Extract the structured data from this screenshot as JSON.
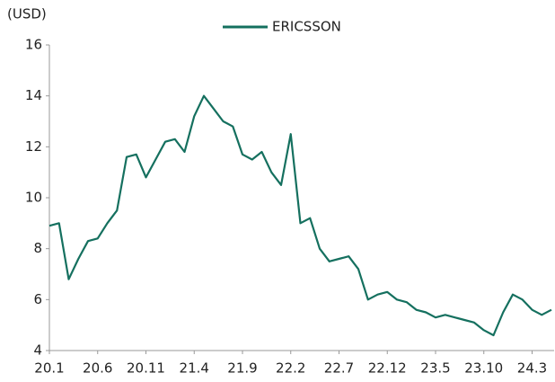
{
  "chart_data": {
    "type": "line",
    "y_label": "(USD)",
    "categories": [
      "20.1",
      "20.2",
      "20.3",
      "20.4",
      "20.5",
      "20.6",
      "20.7",
      "20.8",
      "20.9",
      "20.10",
      "20.11",
      "20.12",
      "21.1",
      "21.2",
      "21.3",
      "21.4",
      "21.5",
      "21.6",
      "21.7",
      "21.8",
      "21.9",
      "21.10",
      "21.11",
      "21.12",
      "22.1",
      "22.2",
      "22.3",
      "22.4",
      "22.5",
      "22.6",
      "22.7",
      "22.8",
      "22.9",
      "22.10",
      "22.11",
      "22.12",
      "23.1",
      "23.2",
      "23.3",
      "23.4",
      "23.5",
      "23.6",
      "23.7",
      "23.8",
      "23.9",
      "23.10",
      "23.11",
      "23.12",
      "24.1",
      "24.2",
      "24.3",
      "24.4",
      "24.5"
    ],
    "series": [
      {
        "name": "ERICSSON",
        "color": "#15705f",
        "values": [
          8.9,
          9.0,
          6.8,
          7.6,
          8.3,
          8.4,
          9.0,
          9.5,
          11.6,
          11.7,
          10.8,
          11.5,
          12.2,
          12.3,
          11.8,
          13.2,
          14.0,
          13.5,
          13.0,
          12.8,
          11.7,
          11.5,
          11.8,
          11.0,
          10.5,
          12.5,
          9.0,
          9.2,
          8.0,
          7.5,
          7.6,
          7.7,
          7.2,
          6.0,
          6.2,
          6.3,
          6.0,
          5.9,
          5.6,
          5.5,
          5.3,
          5.4,
          5.3,
          5.2,
          5.1,
          4.8,
          4.6,
          5.5,
          6.2,
          6.0,
          5.6,
          5.4,
          5.6
        ]
      }
    ],
    "xticks": [
      "20.1",
      "20.6",
      "20.11",
      "21.4",
      "21.9",
      "22.2",
      "22.7",
      "22.12",
      "23.5",
      "23.10",
      "24.3"
    ],
    "ylim": [
      4,
      16
    ],
    "yticks": [
      4,
      6,
      8,
      10,
      12,
      14,
      16
    ],
    "grid": false,
    "legend": "top"
  }
}
